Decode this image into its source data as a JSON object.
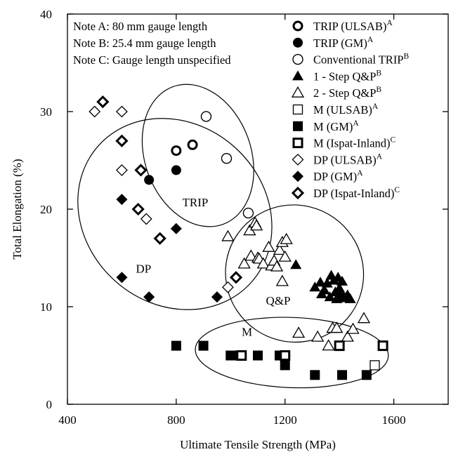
{
  "chart_data": {
    "type": "scatter",
    "xlabel": "Ultimate Tensile Strength (MPa)",
    "ylabel": "Total Elongation (%)",
    "xlim": [
      400,
      1800
    ],
    "ylim": [
      0,
      40
    ],
    "xticks": [
      "400",
      "800",
      "1200",
      "1600"
    ],
    "yticks": [
      "0",
      "10",
      "20",
      "30",
      "40"
    ],
    "grid": false,
    "legend_position": "top-right",
    "notes": [
      "Note A: 80 mm gauge length",
      "Note B: 25.4 mm gauge length",
      "Note C: Gauge length unspecified"
    ],
    "region_labels": [
      {
        "text": "TRIP",
        "x": 870,
        "y": 20.3
      },
      {
        "text": "DP",
        "x": 680,
        "y": 13.5
      },
      {
        "text": "Q&P",
        "x": 1175,
        "y": 10.2
      },
      {
        "text": "M",
        "x": 1060,
        "y": 7.0
      }
    ],
    "regions": [
      {
        "name": "TRIP",
        "cx": 880,
        "cy": 25.5,
        "rx": 195,
        "ry": 7.5,
        "angle": 20
      },
      {
        "name": "DP",
        "cx": 795,
        "cy": 19.5,
        "rx": 330,
        "ry": 10.5,
        "angle": 48
      },
      {
        "name": "Q&P",
        "cx": 1235,
        "cy": 13.4,
        "rx": 255,
        "ry": 7.0,
        "angle": -35
      },
      {
        "name": "M",
        "cx": 1225,
        "cy": 5.3,
        "rx": 355,
        "ry": 3.6,
        "angle": -2
      }
    ],
    "series": [
      {
        "name": "TRIP (ULSAB)",
        "sup": "A",
        "marker": "circle-bold",
        "points": [
          [
            800,
            26
          ],
          [
            860,
            26.6
          ]
        ]
      },
      {
        "name": "TRIP (GM)",
        "sup": "A",
        "marker": "circle-filled",
        "points": [
          [
            700,
            23
          ],
          [
            800,
            24
          ]
        ]
      },
      {
        "name": "Conventional TRIP",
        "sup": "B",
        "marker": "circle-open",
        "points": [
          [
            910,
            29.5
          ],
          [
            985,
            25.2
          ],
          [
            1065,
            19.6
          ]
        ]
      },
      {
        "name": "1 - Step Q&P",
        "sup": "B",
        "marker": "triangle-filled",
        "points": [
          [
            1240,
            14.3
          ],
          [
            1310,
            12
          ],
          [
            1330,
            12.5
          ],
          [
            1335,
            11.3
          ],
          [
            1345,
            11.7
          ],
          [
            1355,
            12.4
          ],
          [
            1365,
            11
          ],
          [
            1370,
            13.2
          ],
          [
            1380,
            12.7
          ],
          [
            1385,
            11.5
          ],
          [
            1390,
            10.8
          ],
          [
            1395,
            13
          ],
          [
            1400,
            11.9
          ],
          [
            1405,
            11.2
          ],
          [
            1410,
            12.6
          ],
          [
            1415,
            11
          ],
          [
            1420,
            10.9
          ],
          [
            1430,
            11.2
          ],
          [
            1440,
            10.8
          ]
        ]
      },
      {
        "name": "2 - Step Q&P",
        "sup": "B",
        "marker": "triangle-open",
        "points": [
          [
            990,
            17.2
          ],
          [
            1050,
            14.4
          ],
          [
            1070,
            17.8
          ],
          [
            1075,
            15.2
          ],
          [
            1090,
            18.6
          ],
          [
            1095,
            18.3
          ],
          [
            1100,
            15
          ],
          [
            1105,
            14.9
          ],
          [
            1120,
            14.4
          ],
          [
            1140,
            16.1
          ],
          [
            1150,
            14.2
          ],
          [
            1160,
            14.7
          ],
          [
            1170,
            14.1
          ],
          [
            1180,
            15.8
          ],
          [
            1190,
            12.6
          ],
          [
            1190,
            16.6
          ],
          [
            1200,
            15.1
          ],
          [
            1205,
            16.9
          ],
          [
            1250,
            7.3
          ],
          [
            1320,
            6.9
          ],
          [
            1360,
            6
          ],
          [
            1375,
            7.8
          ],
          [
            1390,
            7.8
          ],
          [
            1430,
            6.9
          ],
          [
            1450,
            7.7
          ],
          [
            1490,
            8.8
          ]
        ]
      },
      {
        "name": "M (ULSAB)",
        "sup": "A",
        "marker": "square-open",
        "points": [
          [
            1530,
            4
          ]
        ]
      },
      {
        "name": "M (GM)",
        "sup": "A",
        "marker": "square-filled",
        "points": [
          [
            800,
            6
          ],
          [
            900,
            6
          ],
          [
            1000,
            5
          ],
          [
            1020,
            5
          ],
          [
            1100,
            5
          ],
          [
            1180,
            5
          ],
          [
            1200,
            4
          ],
          [
            1310,
            3
          ],
          [
            1410,
            3
          ],
          [
            1500,
            3
          ]
        ]
      },
      {
        "name": "M (Ispat-Inland)",
        "sup": "C",
        "marker": "square-dot",
        "points": [
          [
            1040,
            5
          ],
          [
            1200,
            5
          ],
          [
            1400,
            6
          ],
          [
            1560,
            6
          ]
        ]
      },
      {
        "name": "DP (ULSAB)",
        "sup": "A",
        "marker": "diamond-open",
        "points": [
          [
            500,
            30
          ],
          [
            600,
            30
          ],
          [
            600,
            24
          ],
          [
            690,
            19
          ],
          [
            990,
            12
          ]
        ]
      },
      {
        "name": "DP (GM)",
        "sup": "A",
        "marker": "diamond-filled",
        "points": [
          [
            600,
            21
          ],
          [
            600,
            13
          ],
          [
            700,
            11
          ],
          [
            800,
            18
          ],
          [
            950,
            11
          ]
        ]
      },
      {
        "name": "DP (Ispat-Inland)",
        "sup": "C",
        "marker": "diamond-dot",
        "points": [
          [
            530,
            31
          ],
          [
            600,
            27
          ],
          [
            660,
            20
          ],
          [
            670,
            24
          ],
          [
            740,
            17
          ],
          [
            1020,
            13
          ]
        ]
      }
    ]
  }
}
